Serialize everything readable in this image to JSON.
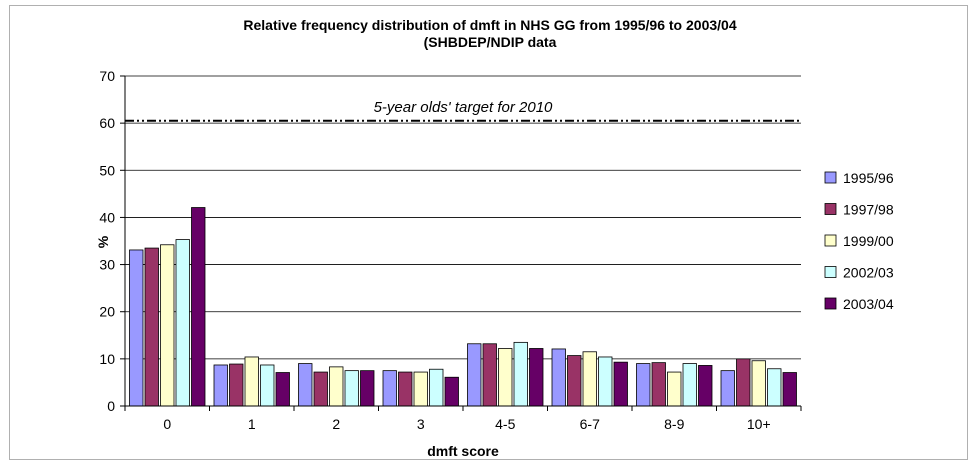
{
  "chart_data": {
    "type": "bar",
    "title": "Relative frequency distribution of dmft in NHS GG from 1995/96 to 2003/04",
    "subtitle": "(SHBDEP/NDIP data",
    "xlabel": "dmft score",
    "ylabel": "%",
    "ylim": [
      0,
      70
    ],
    "yticks": [
      0,
      10,
      20,
      30,
      40,
      50,
      60,
      70
    ],
    "grid": true,
    "legend_position": "right",
    "categories": [
      "0",
      "1",
      "2",
      "3",
      "4-5",
      "6-7",
      "8-9",
      "10+"
    ],
    "series": [
      {
        "name": "1995/96",
        "color": "#9999ff",
        "values": [
          33.1,
          8.7,
          9.0,
          7.5,
          13.2,
          12.1,
          9.0,
          7.5
        ]
      },
      {
        "name": "1997/98",
        "color": "#993366",
        "values": [
          33.5,
          8.9,
          7.2,
          7.2,
          13.2,
          10.7,
          9.2,
          10.0
        ]
      },
      {
        "name": "1999/00",
        "color": "#ffffcc",
        "values": [
          34.2,
          10.4,
          8.3,
          7.2,
          12.2,
          11.5,
          7.2,
          9.6
        ]
      },
      {
        "name": "2002/03",
        "color": "#ccffff",
        "values": [
          35.3,
          8.7,
          7.5,
          7.8,
          13.5,
          10.4,
          9.0,
          7.9
        ]
      },
      {
        "name": "2003/04",
        "color": "#660066",
        "values": [
          42.1,
          7.1,
          7.5,
          6.1,
          12.2,
          9.3,
          8.6,
          7.1
        ]
      }
    ],
    "reference_line": {
      "value": 60.5,
      "label": "5-year olds' target for 2010"
    }
  }
}
